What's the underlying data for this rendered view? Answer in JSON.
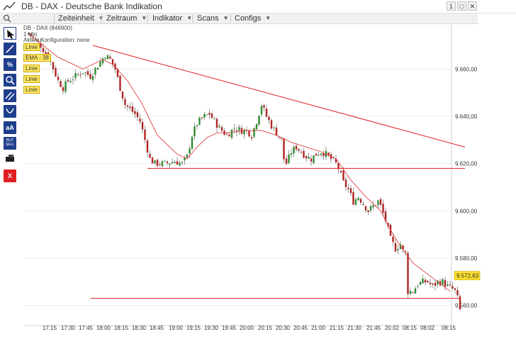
{
  "window": {
    "title": "DB - DAX - Deutsche Bank Indikation",
    "btn_restore": "1",
    "btn_max": "□",
    "btn_close": "✕"
  },
  "menu": [
    {
      "label": "Zeiteinheit"
    },
    {
      "label": "Zeitraum"
    },
    {
      "label": "Indikator"
    },
    {
      "label": "Scans"
    },
    {
      "label": "Configs"
    }
  ],
  "chart_header": {
    "symbol_line": "DB - DAX (846900)",
    "interval": "1 Min",
    "config": "Aktive Konfiguration: none"
  },
  "overlay_labels": {
    "linie": "Linie",
    "ema": "EMA - 38"
  },
  "toolbar": {
    "cursor_icon": "cursor-arrow-icon",
    "line_icon": "line-draw-icon",
    "percent_label": "%",
    "zoom_icon": "magnifier-icon",
    "parallel_icon": "parallel-lines-icon",
    "arc_icon": "arc-icon",
    "text_label": "aA",
    "buysell_label": "BUY\nSELL",
    "eraser_icon": "eraser-icon",
    "delete_label": "X"
  },
  "colors": {
    "up": "#2e8b2e",
    "down": "#b22222",
    "trend": "#e02020",
    "ema": "#e04040",
    "price_tag": "#ffe030"
  },
  "chart_data": {
    "type": "candlestick",
    "title": "DB - DAX (846900)",
    "ylim": [
      9553,
      9679
    ],
    "y_ticks": [
      "9.660,00",
      "9.640,00",
      "9.620,00",
      "9.600,00",
      "9.580,00",
      "9.560,00"
    ],
    "y_tick_values": [
      9660,
      9640,
      9620,
      9600,
      9580,
      9560
    ],
    "x_ticks": [
      "17:15",
      "17:30",
      "17:45",
      "18:00",
      "18:15",
      "18:30",
      "18:45",
      "19:00",
      "19:15",
      "19:30",
      "19:45",
      "20:00",
      "20:15",
      "20:30",
      "20:45",
      "21:00",
      "21:15",
      "21:30",
      "21:45",
      "20.02",
      "08:15",
      "08:02",
      "08:15"
    ],
    "last_price": "9.572,63",
    "last_price_value": 9572.63,
    "close_path": [
      [
        0,
        9675
      ],
      [
        5,
        9670
      ],
      [
        9,
        9663
      ],
      [
        12,
        9655
      ],
      [
        14,
        9652
      ],
      [
        16,
        9655
      ],
      [
        19,
        9657
      ],
      [
        22,
        9659
      ],
      [
        25,
        9657
      ],
      [
        27,
        9660
      ],
      [
        29,
        9663
      ],
      [
        31,
        9666
      ],
      [
        33,
        9664
      ],
      [
        35,
        9660
      ],
      [
        37,
        9652
      ],
      [
        39,
        9645
      ],
      [
        41,
        9643
      ],
      [
        43,
        9641
      ],
      [
        45,
        9638
      ],
      [
        47,
        9630
      ],
      [
        49,
        9622
      ],
      [
        51,
        9620
      ],
      [
        55,
        9620
      ],
      [
        59,
        9621
      ],
      [
        62,
        9620
      ],
      [
        64,
        9623
      ],
      [
        66,
        9632
      ],
      [
        68,
        9637
      ],
      [
        71,
        9640
      ],
      [
        73,
        9641
      ],
      [
        75,
        9638
      ],
      [
        77,
        9635
      ],
      [
        80,
        9632
      ],
      [
        83,
        9635
      ],
      [
        86,
        9634
      ],
      [
        88,
        9634
      ],
      [
        90,
        9632
      ],
      [
        92,
        9638
      ],
      [
        94,
        9645
      ],
      [
        96,
        9640
      ],
      [
        98,
        9636
      ],
      [
        100,
        9633
      ],
      [
        102,
        9630
      ],
      [
        103,
        9622
      ],
      [
        104,
        9620
      ],
      [
        106,
        9625
      ],
      [
        108,
        9627
      ],
      [
        110,
        9625
      ],
      [
        112,
        9623
      ],
      [
        114,
        9622
      ],
      [
        116,
        9624
      ],
      [
        118,
        9625
      ],
      [
        120,
        9624
      ],
      [
        122,
        9622
      ],
      [
        124,
        9620
      ],
      [
        125,
        9618
      ],
      [
        127,
        9612
      ],
      [
        129,
        9609
      ],
      [
        131,
        9604
      ],
      [
        133,
        9606
      ],
      [
        135,
        9603
      ],
      [
        137,
        9600
      ],
      [
        139,
        9602
      ],
      [
        141,
        9604
      ],
      [
        142,
        9602
      ],
      [
        144,
        9596
      ],
      [
        146,
        9588
      ],
      [
        148,
        9584
      ],
      [
        150,
        9586
      ],
      [
        151,
        9583
      ],
      [
        152,
        9582
      ],
      [
        153,
        9566
      ],
      [
        155,
        9566
      ],
      [
        157,
        9569
      ],
      [
        159,
        9570
      ],
      [
        161,
        9570
      ],
      [
        163,
        9568
      ],
      [
        165,
        9570
      ],
      [
        167,
        9570
      ],
      [
        169,
        9568
      ],
      [
        171,
        9567
      ],
      [
        172,
        9566
      ],
      [
        173,
        9563
      ],
      [
        174,
        9558
      ]
    ],
    "ema_path": [
      [
        0,
        9675
      ],
      [
        12,
        9665
      ],
      [
        22,
        9660
      ],
      [
        30,
        9664
      ],
      [
        34,
        9662
      ],
      [
        40,
        9655
      ],
      [
        46,
        9645
      ],
      [
        52,
        9632
      ],
      [
        56,
        9628
      ],
      [
        60,
        9624
      ],
      [
        64,
        9622
      ],
      [
        68,
        9627
      ],
      [
        72,
        9631
      ],
      [
        76,
        9633
      ],
      [
        80,
        9633
      ],
      [
        88,
        9634
      ],
      [
        94,
        9634
      ],
      [
        100,
        9632
      ],
      [
        106,
        9629
      ],
      [
        112,
        9627
      ],
      [
        118,
        9625
      ],
      [
        124,
        9622
      ],
      [
        130,
        9613
      ],
      [
        136,
        9606
      ],
      [
        142,
        9600
      ],
      [
        146,
        9592
      ],
      [
        150,
        9585
      ],
      [
        155,
        9578
      ],
      [
        160,
        9574
      ],
      [
        165,
        9570
      ],
      [
        170,
        9566
      ]
    ],
    "trend_lines": [
      {
        "name": "downtrend",
        "from": [
          26,
          9670
        ],
        "to": [
          176,
          9627
        ]
      },
      {
        "name": "support-upper",
        "from": [
          48,
          9618
        ],
        "to": [
          176,
          9618
        ]
      },
      {
        "name": "support-lower",
        "from": [
          25,
          9563
        ],
        "to": [
          174,
          9563
        ]
      }
    ]
  }
}
